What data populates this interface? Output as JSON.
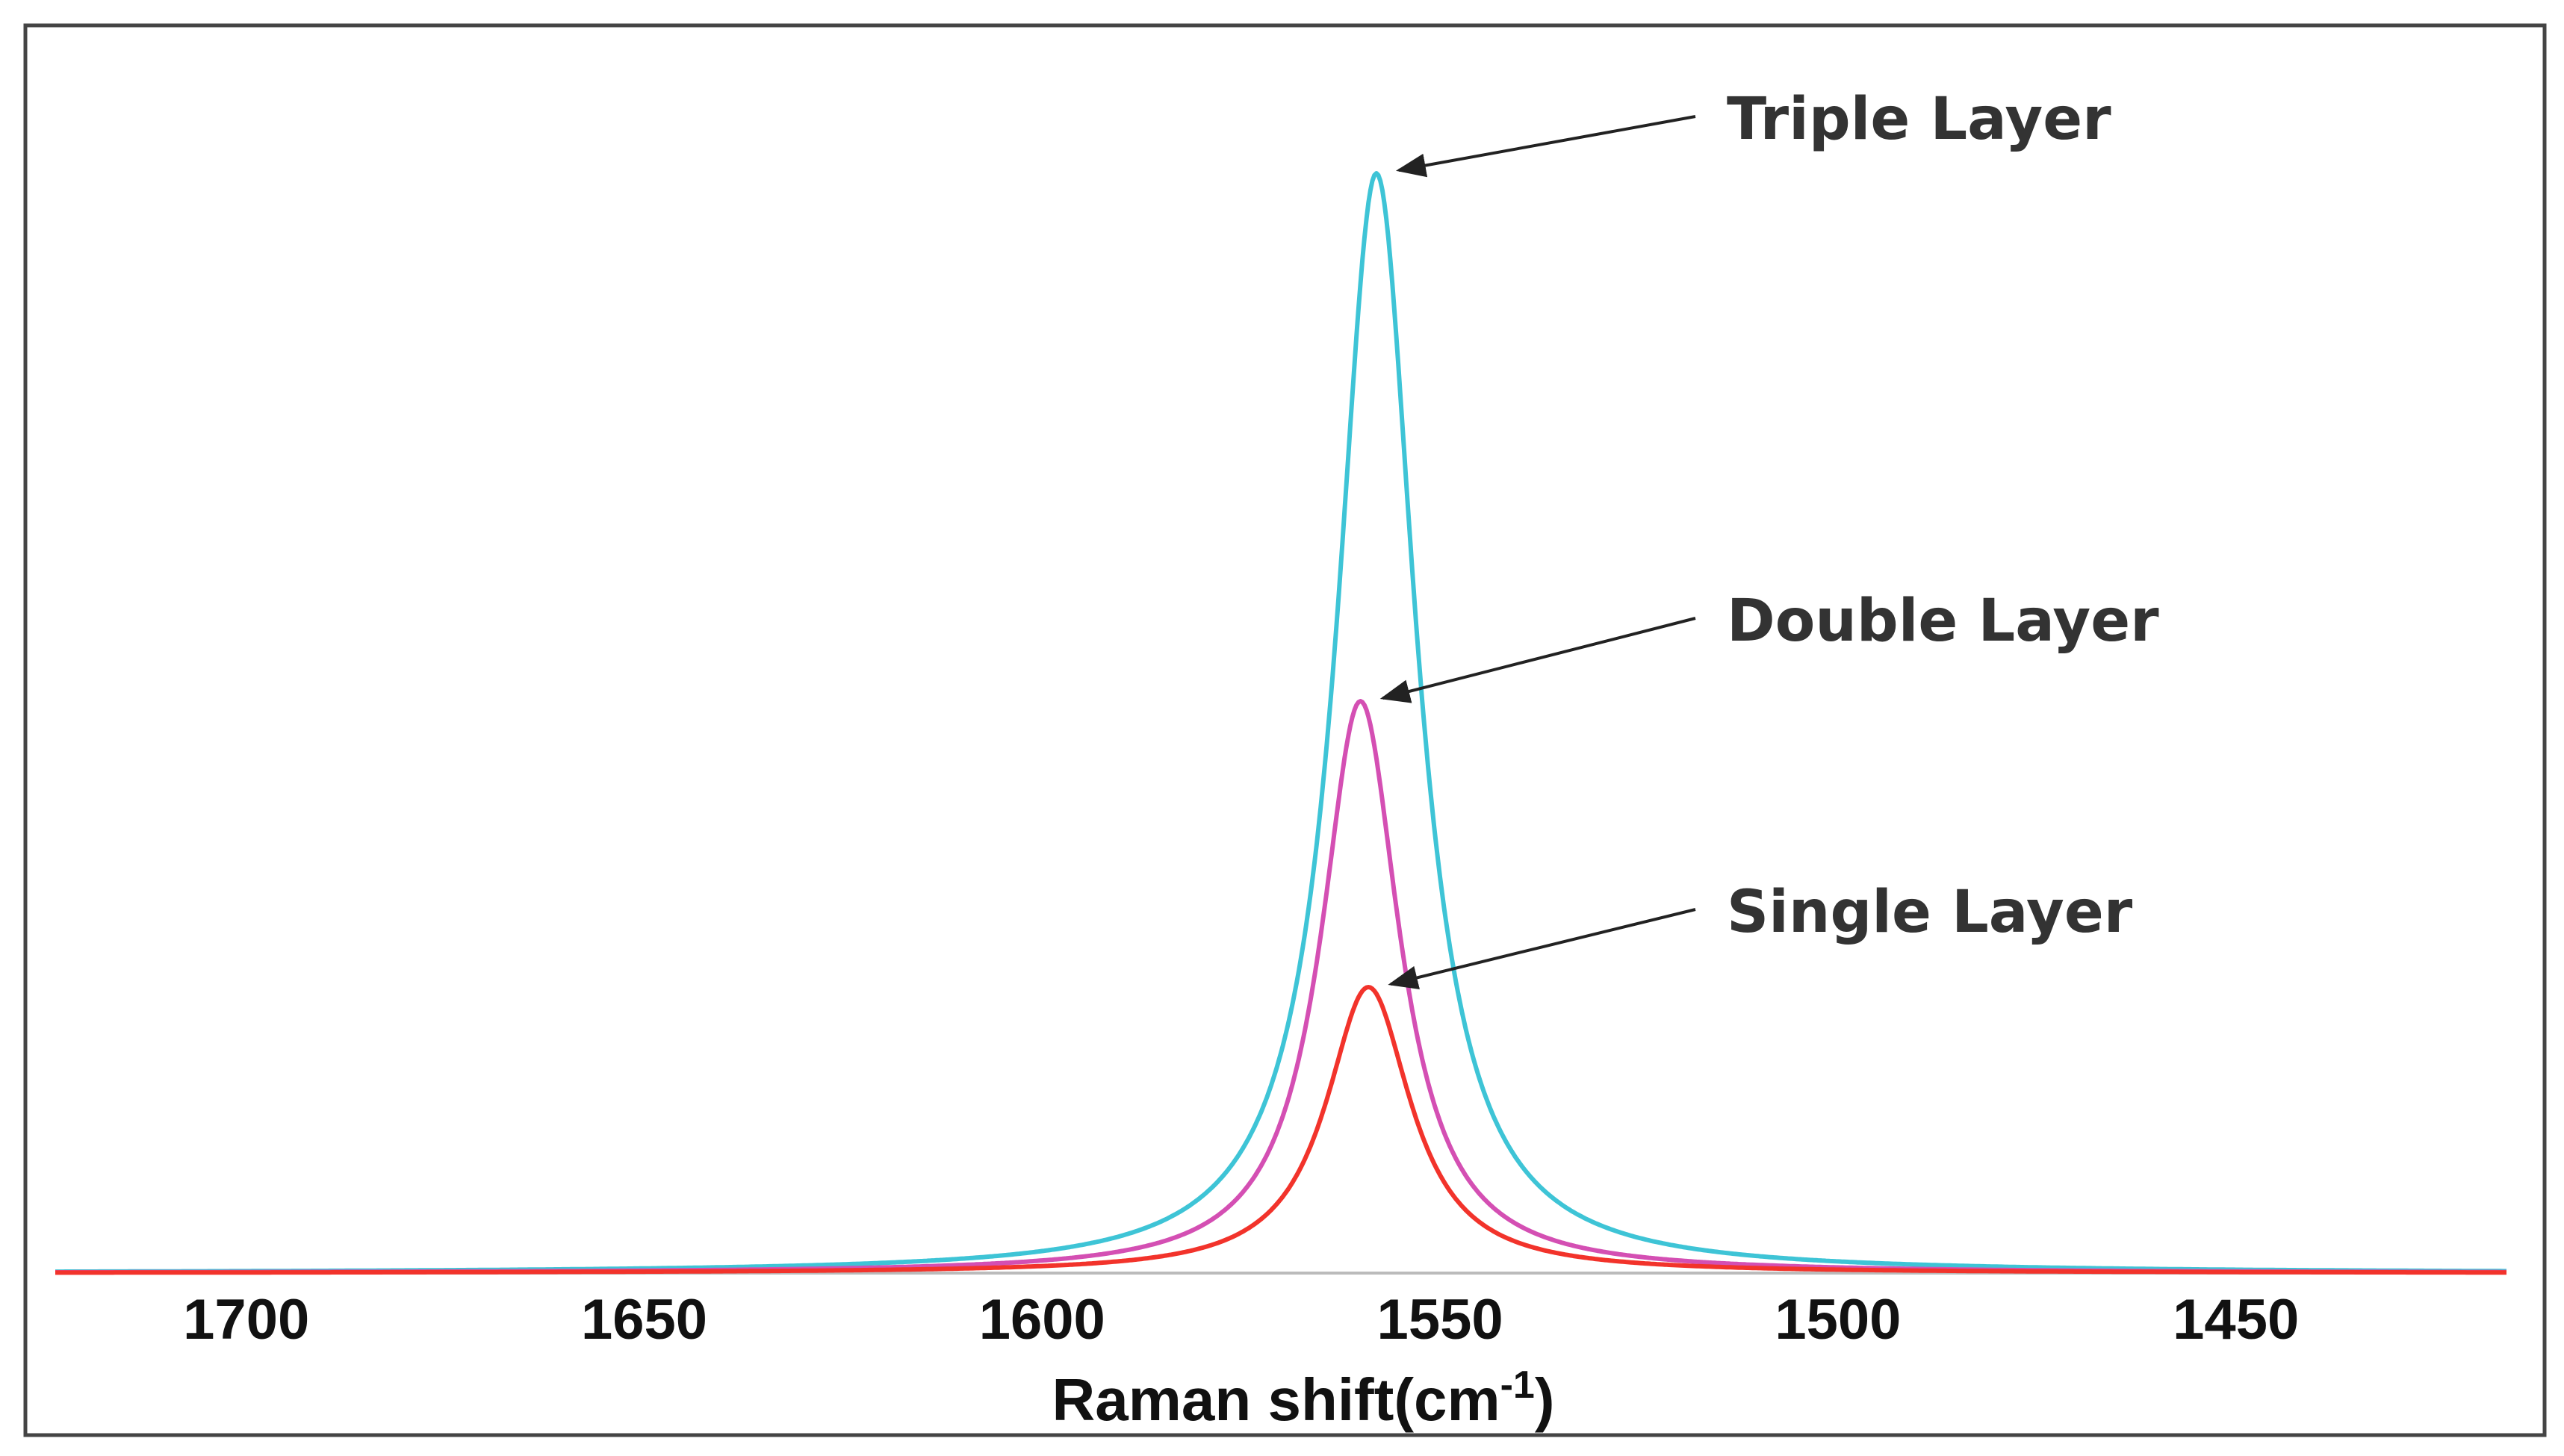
{
  "chart_data": {
    "type": "line",
    "title": "",
    "xlabel": "Raman shift(cm",
    "xlabel_sup": "-1",
    "xlabel_close": ")",
    "ylabel": "",
    "x_reversed": true,
    "xlim": [
      1724,
      1416
    ],
    "ylim": [
      0,
      1.0
    ],
    "grid": false,
    "x_ticks": [
      1700,
      1650,
      1600,
      1550,
      1500,
      1450
    ],
    "series": [
      {
        "name": "Triple Layer",
        "color": "#3ec4d6",
        "peak_center": 1558,
        "peak_height": 1.0,
        "hwhm": 6.0
      },
      {
        "name": "Double Layer",
        "color": "#d44fb3",
        "peak_center": 1560,
        "peak_height": 0.52,
        "hwhm": 6.0
      },
      {
        "name": "Single Layer",
        "color": "#f2332b",
        "peak_center": 1559,
        "peak_height": 0.26,
        "hwhm": 6.5
      }
    ],
    "annotations": [
      {
        "text": "Triple Layer",
        "series": "Triple Layer"
      },
      {
        "text": "Double Layer",
        "series": "Double Layer"
      },
      {
        "text": "Single Layer",
        "series": "Single Layer"
      }
    ]
  }
}
